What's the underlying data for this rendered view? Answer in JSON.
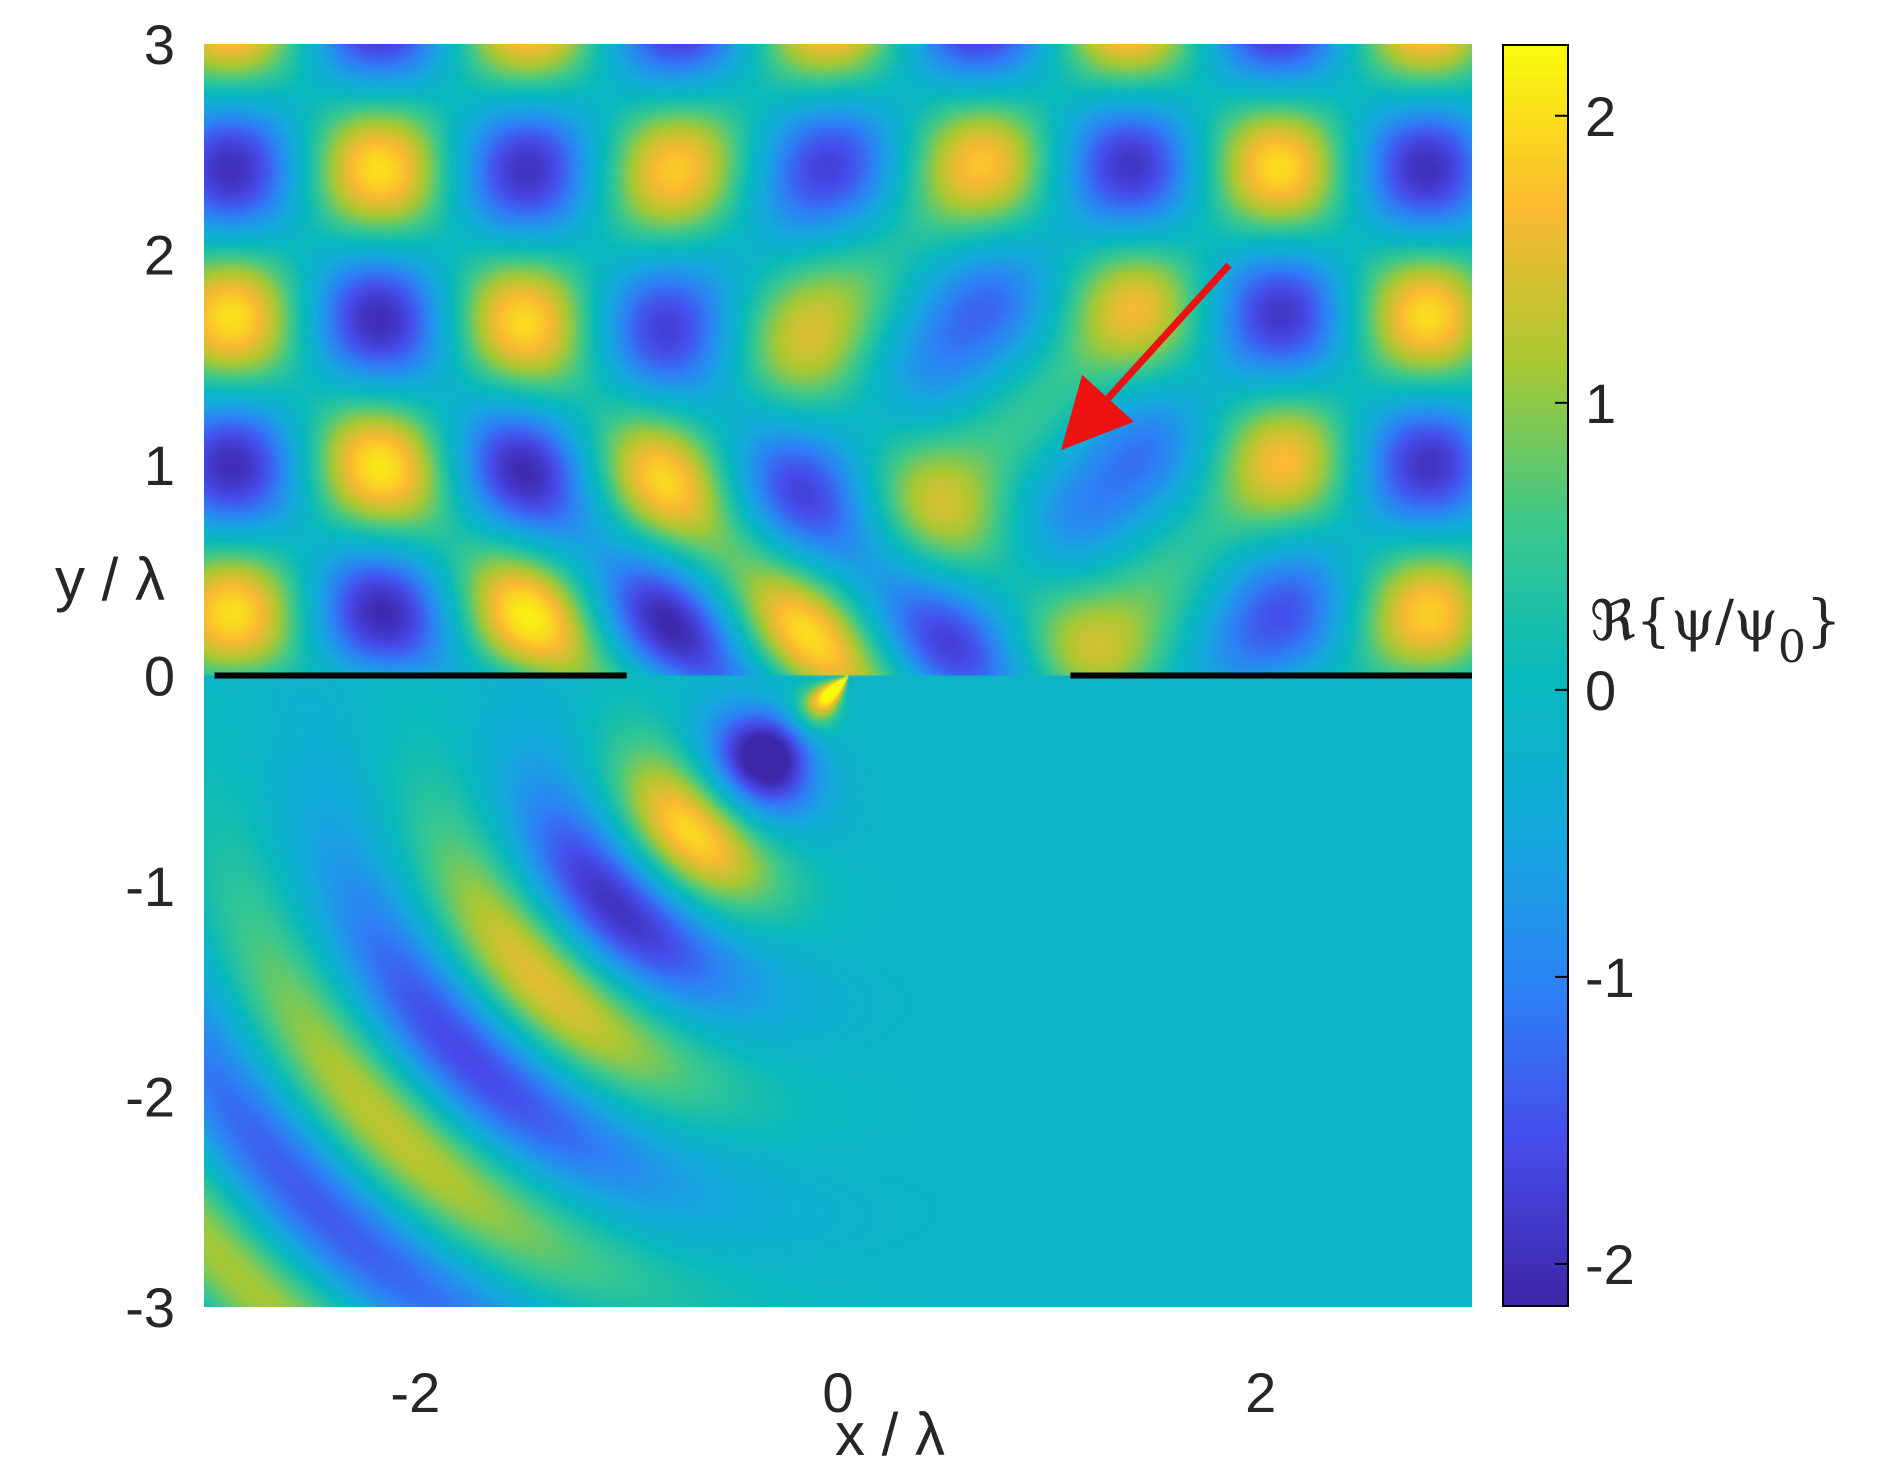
{
  "chart_data": {
    "type": "heatmap",
    "title": "",
    "xlabel": "x / λ",
    "ylabel": "y / λ",
    "xlim": [
      -3,
      3
    ],
    "ylim": [
      -3,
      3
    ],
    "x_ticks": [
      -2,
      0,
      2
    ],
    "x_tick_labels": [
      "-2",
      "0",
      "2"
    ],
    "y_ticks": [
      3,
      2,
      1,
      0,
      -1,
      -2,
      -3
    ],
    "y_tick_labels": [
      "3",
      "2",
      "1",
      "0",
      "-1",
      "-2",
      "-3"
    ],
    "colorbar": {
      "label": "ℜ{ψ/ψ",
      "label_subscript": "0",
      "label_close": "}",
      "range": [
        -2.15,
        2.25
      ],
      "ticks": [
        2,
        1,
        0,
        -1,
        -2
      ],
      "tick_labels": [
        "2",
        "1",
        "0",
        "-1",
        "-2"
      ],
      "colormap": "parula"
    },
    "barriers": [
      {
        "x": [
          -2.95,
          -1.0
        ],
        "y": 0
      },
      {
        "x": [
          1.1,
          3.0
        ],
        "y": 0
      }
    ],
    "arrow": {
      "from": [
        1.85,
        1.95
      ],
      "to": [
        1.1,
        1.12
      ],
      "color": "#ee1111"
    },
    "field": {
      "description_of_regions": "standing-wave checkerboard for y > 0 (incident plus reflected wave), diffracted cylindrical wave fronts for y < 0 emerging from the slit between x = -1 and x = 1.1",
      "incidence_direction": [
        -0.707,
        -0.707
      ]
    }
  }
}
